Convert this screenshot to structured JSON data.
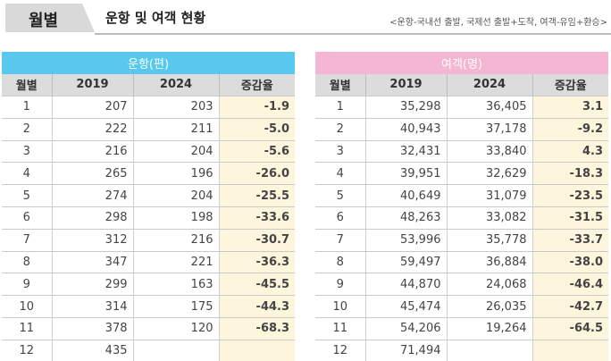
{
  "header": {
    "tab_label": "월별",
    "title": "운항 및 여객 현황",
    "note": "<운항-국내선 출발, 국제선 출발+도착, 여객-유임+환승>"
  },
  "flights": {
    "group_label": "운항(편)",
    "columns": [
      "월별",
      "2019",
      "2024",
      "증감율"
    ],
    "rows": [
      {
        "month": "1",
        "y2019": "207",
        "y2024": "203",
        "rate": "-1.9"
      },
      {
        "month": "2",
        "y2019": "222",
        "y2024": "211",
        "rate": "-5.0"
      },
      {
        "month": "3",
        "y2019": "216",
        "y2024": "204",
        "rate": "-5.6"
      },
      {
        "month": "4",
        "y2019": "265",
        "y2024": "196",
        "rate": "-26.0"
      },
      {
        "month": "5",
        "y2019": "274",
        "y2024": "204",
        "rate": "-25.5"
      },
      {
        "month": "6",
        "y2019": "298",
        "y2024": "198",
        "rate": "-33.6"
      },
      {
        "month": "7",
        "y2019": "312",
        "y2024": "216",
        "rate": "-30.7"
      },
      {
        "month": "8",
        "y2019": "347",
        "y2024": "221",
        "rate": "-36.3"
      },
      {
        "month": "9",
        "y2019": "299",
        "y2024": "163",
        "rate": "-45.5"
      },
      {
        "month": "10",
        "y2019": "314",
        "y2024": "175",
        "rate": "-44.3"
      },
      {
        "month": "11",
        "y2019": "378",
        "y2024": "120",
        "rate": "-68.3"
      },
      {
        "month": "12",
        "y2019": "435",
        "y2024": "",
        "rate": ""
      }
    ]
  },
  "passengers": {
    "group_label": "여객(명)",
    "columns": [
      "월별",
      "2019",
      "2024",
      "증감율"
    ],
    "rows": [
      {
        "month": "1",
        "y2019": "35,298",
        "y2024": "36,405",
        "rate": "3.1"
      },
      {
        "month": "2",
        "y2019": "40,943",
        "y2024": "37,178",
        "rate": "-9.2"
      },
      {
        "month": "3",
        "y2019": "32,431",
        "y2024": "33,840",
        "rate": "4.3"
      },
      {
        "month": "4",
        "y2019": "39,951",
        "y2024": "32,629",
        "rate": "-18.3"
      },
      {
        "month": "5",
        "y2019": "40,649",
        "y2024": "31,079",
        "rate": "-23.5"
      },
      {
        "month": "6",
        "y2019": "48,263",
        "y2024": "33,082",
        "rate": "-31.5"
      },
      {
        "month": "7",
        "y2019": "53,996",
        "y2024": "35,778",
        "rate": "-33.7"
      },
      {
        "month": "8",
        "y2019": "59,497",
        "y2024": "36,884",
        "rate": "-38.0"
      },
      {
        "month": "9",
        "y2019": "44,870",
        "y2024": "24,068",
        "rate": "-46.4"
      },
      {
        "month": "10",
        "y2019": "45,474",
        "y2024": "26,035",
        "rate": "-42.7"
      },
      {
        "month": "11",
        "y2019": "54,206",
        "y2024": "19,264",
        "rate": "-64.5"
      },
      {
        "month": "12",
        "y2019": "71,494",
        "y2024": "",
        "rate": ""
      }
    ]
  }
}
